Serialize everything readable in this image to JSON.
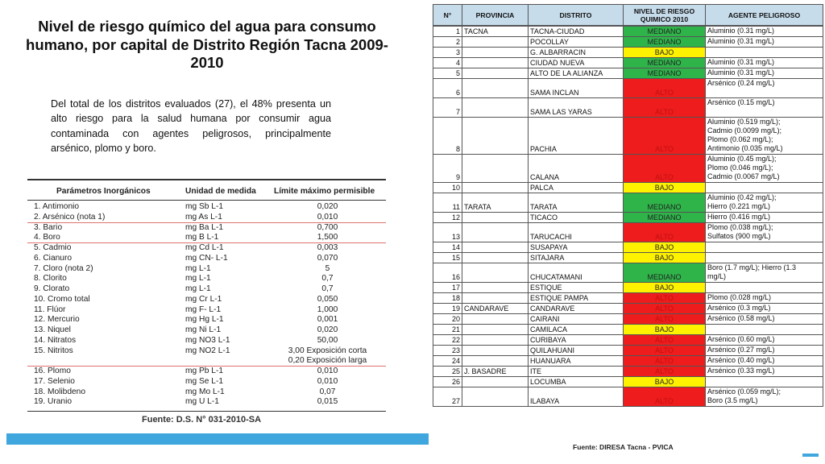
{
  "title": "Nivel de riesgo químico del agua para consumo humano, por capital de Distrito Región Tacna 2009-2010",
  "intro": "Del total de los distritos evaluados (27), el 48% presenta un alto riesgo para la salud humana por consumir agua contaminada con agentes peligrosos, principalmente arsénico, plomo y boro.",
  "params": {
    "headers": [
      "Parámetros Inorgánicos",
      "Unidad de medida",
      "Límite máximo permisible"
    ],
    "rows": [
      {
        "name": "1.  Antimonio",
        "unit": "mg Sb L-1",
        "limit": "0,020"
      },
      {
        "name": "2.  Arsénico (nota 1)",
        "unit": "mg As L-1",
        "limit": "0,010"
      },
      {
        "name": "3.  Bario",
        "unit": "mg Ba L-1",
        "limit": "0,700"
      },
      {
        "name": "4.  Boro",
        "unit": "mg B L-1",
        "limit": "1,500"
      },
      {
        "name": "5.  Cadmio",
        "unit": "mg Cd L-1",
        "limit": "0,003"
      },
      {
        "name": "6.  Cianuro",
        "unit": "mg CN- L-1",
        "limit": "0,070"
      },
      {
        "name": "7.  Cloro (nota 2)",
        "unit": "mg L-1",
        "limit": "5"
      },
      {
        "name": "8.  Clorito",
        "unit": "mg L-1",
        "limit": "0,7"
      },
      {
        "name": "9.  Clorato",
        "unit": "mg L-1",
        "limit": "0,7"
      },
      {
        "name": "10. Cromo total",
        "unit": "mg Cr L-1",
        "limit": "0,050"
      },
      {
        "name": "11. Flúor",
        "unit": "mg F- L-1",
        "limit": "1,000"
      },
      {
        "name": "12. Mercurio",
        "unit": "mg Hg L-1",
        "limit": "0,001"
      },
      {
        "name": "13. Niquel",
        "unit": "mg Ni L-1",
        "limit": "0,020"
      },
      {
        "name": "14. Nitratos",
        "unit": "mg NO3 L-1",
        "limit": "50,00"
      },
      {
        "name": "15. Nitritos",
        "unit": "mg NO2 L-1",
        "limit": "3,00 Exposición corta"
      },
      {
        "name": "",
        "unit": "",
        "limit": "0,20 Exposición larga"
      },
      {
        "name": "16. Plomo",
        "unit": "mg Pb L-1",
        "limit": "0,010"
      },
      {
        "name": "17. Selenio",
        "unit": "mg Se L-1",
        "limit": "0,010"
      },
      {
        "name": "18. Molibdeno",
        "unit": "mg Mo L-1",
        "limit": "0,07"
      },
      {
        "name": "19. Uranio",
        "unit": "mg U L-1",
        "limit": "0,015"
      }
    ],
    "source": "Fuente: D.S. N° 031-2010-SA"
  },
  "risk": {
    "headers": [
      "N°",
      "PROVINCIA",
      "DISTRITO",
      "NIVEL DE RIESGO QUIMICO 2010",
      "AGENTE PELIGROSO"
    ],
    "colors": {
      "MEDIANO": "#2fb44a",
      "ALTO": "#ee1c1c",
      "BAJO": "#fff200"
    },
    "rows": [
      {
        "n": "1",
        "prov": "TACNA",
        "dist": "TACNA-CIUDAD",
        "level": "MEDIANO",
        "agent": "Aluminio (0.31 mg/L)"
      },
      {
        "n": "2",
        "prov": "",
        "dist": "POCOLLAY",
        "level": "MEDIANO",
        "agent": "Aluminio (0.31 mg/L)"
      },
      {
        "n": "3",
        "prov": "",
        "dist": "G. ALBARRACIN",
        "level": "BAJO",
        "agent": ""
      },
      {
        "n": "4",
        "prov": "",
        "dist": "CIUDAD NUEVA",
        "level": "MEDIANO",
        "agent": "Aluminio (0.31 mg/L)"
      },
      {
        "n": "5",
        "prov": "",
        "dist": "ALTO DE LA ALIANZA",
        "level": "MEDIANO",
        "agent": "Aluminio (0.31 mg/L)"
      },
      {
        "n": "6",
        "prov": "",
        "dist": "SAMA INCLAN",
        "level": "ALTO",
        "agent": "Arsénico (0.24 mg/L)"
      },
      {
        "n": "7",
        "prov": "",
        "dist": "SAMA LAS YARAS",
        "level": "ALTO",
        "agent": "Arsénico (0.15 mg/L)"
      },
      {
        "n": "8",
        "prov": "",
        "dist": "PACHIA",
        "level": "ALTO",
        "agent": "Aluminio (0.519 mg/L);\nCadmio (0.0099 mg/L);\nPlomo (0.062 mg/L);\nAntimonio (0.035 mg/L)"
      },
      {
        "n": "9",
        "prov": "",
        "dist": "CALANA",
        "level": "ALTO",
        "agent": "Aluminio (0.45 mg/L);\nPlomo (0.046 mg/L);\nCadmio (0.0067 mg/L)"
      },
      {
        "n": "10",
        "prov": "",
        "dist": "PALCA",
        "level": "BAJO",
        "agent": ""
      },
      {
        "n": "11",
        "prov": "TARATA",
        "dist": "TARATA",
        "level": "MEDIANO",
        "agent": "Aluminio (0.42 mg/L);\nHierro (0.221 mg/L)"
      },
      {
        "n": "12",
        "prov": "",
        "dist": "TICACO",
        "level": "MEDIANO",
        "agent": "Hierro (0.416 mg/L)"
      },
      {
        "n": "13",
        "prov": "",
        "dist": "TARUCACHI",
        "level": "ALTO",
        "agent": "Plomo (0.038 mg/L);\nSulfatos (900 mg/L)"
      },
      {
        "n": "14",
        "prov": "",
        "dist": "SUSAPAYA",
        "level": "BAJO",
        "agent": ""
      },
      {
        "n": "15",
        "prov": "",
        "dist": "SITAJARA",
        "level": "BAJO",
        "agent": ""
      },
      {
        "n": "16",
        "prov": "",
        "dist": "CHUCATAMANI",
        "level": "MEDIANO",
        "agent": "Boro (1.7 mg/L); Hierro (1.3\nmg/L)"
      },
      {
        "n": "17",
        "prov": "",
        "dist": "ESTIQUE",
        "level": "BAJO",
        "agent": ""
      },
      {
        "n": "18",
        "prov": "",
        "dist": "ESTIQUE PAMPA",
        "level": "ALTO",
        "agent": "Plomo (0.028 mg/L)"
      },
      {
        "n": "19",
        "prov": "CANDARAVE",
        "dist": "CANDARAVE",
        "level": "ALTO",
        "agent": "Arsénico (0.3 mg/L)"
      },
      {
        "n": "20",
        "prov": "",
        "dist": "CAIRANI",
        "level": "ALTO",
        "agent": "Arsénico (0.58 mg/L)"
      },
      {
        "n": "21",
        "prov": "",
        "dist": "CAMILACA",
        "level": "BAJO",
        "agent": ""
      },
      {
        "n": "22",
        "prov": "",
        "dist": "CURIBAYA",
        "level": "ALTO",
        "agent": "Arsénico (0.60 mg/L)"
      },
      {
        "n": "23",
        "prov": "",
        "dist": "QUILAHUANI",
        "level": "ALTO",
        "agent": "Arsénico (0.27 mg/L)"
      },
      {
        "n": "24",
        "prov": "",
        "dist": "HUANUARA",
        "level": "ALTO",
        "agent": "Arsénico (0.40 mg/L)"
      },
      {
        "n": "25",
        "prov": "J. BASADRE",
        "dist": "ITE",
        "level": "ALTO",
        "agent": "Arsénico (0.33 mg/L)"
      },
      {
        "n": "26",
        "prov": "",
        "dist": "LOCUMBA",
        "level": "BAJO",
        "agent": ""
      },
      {
        "n": "27",
        "prov": "",
        "dist": "ILABAYA",
        "level": "ALTO",
        "agent": "Arsénico (0.059 mg/L);\nBoro (3.5 mg/L)"
      }
    ],
    "source": "Fuente: DIRESA Tacna - PVICA"
  }
}
